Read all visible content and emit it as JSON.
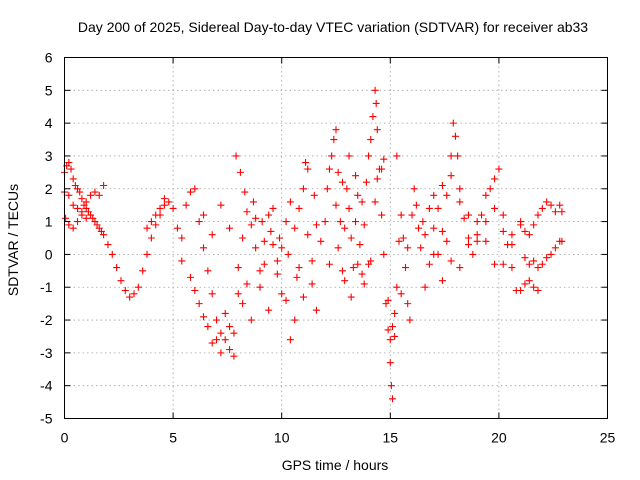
{
  "chart_data": {
    "type": "scatter",
    "title": "Day 200 of 2025, Sidereal Day-to-day VTEC variation (SDTVAR) for receiver ab33",
    "xlabel": "GPS time / hours",
    "ylabel": "SDTVAR / TECUs",
    "xlim": [
      0,
      25
    ],
    "ylim": [
      -5,
      6
    ],
    "xticks": [
      0,
      5,
      10,
      15,
      20,
      25
    ],
    "yticks": [
      -5,
      -4,
      -3,
      -2,
      -1,
      0,
      1,
      2,
      3,
      4,
      5,
      6
    ],
    "grid": true,
    "marker": "+",
    "color": "#ff0000",
    "series": [
      {
        "name": "SDTVAR",
        "points": [
          [
            0.0,
            2.5
          ],
          [
            0.1,
            2.7
          ],
          [
            0.2,
            2.8
          ],
          [
            0.3,
            2.6
          ],
          [
            0.4,
            2.3
          ],
          [
            0.5,
            2.1
          ],
          [
            0.6,
            2.0
          ],
          [
            0.7,
            1.9
          ],
          [
            0.8,
            1.7
          ],
          [
            0.9,
            1.5
          ],
          [
            1.0,
            1.4
          ],
          [
            1.1,
            1.3
          ],
          [
            1.2,
            1.2
          ],
          [
            1.3,
            1.1
          ],
          [
            1.4,
            1.0
          ],
          [
            1.5,
            0.9
          ],
          [
            1.6,
            0.8
          ],
          [
            1.7,
            0.7
          ],
          [
            1.8,
            0.6
          ],
          [
            2.0,
            0.3
          ],
          [
            2.2,
            0.0
          ],
          [
            2.4,
            -0.4
          ],
          [
            2.6,
            -0.8
          ],
          [
            2.8,
            -1.1
          ],
          [
            3.0,
            -1.3
          ],
          [
            3.2,
            -1.2
          ],
          [
            3.4,
            -1.0
          ],
          [
            3.6,
            -0.5
          ],
          [
            3.8,
            0.0
          ],
          [
            4.0,
            0.5
          ],
          [
            4.2,
            0.9
          ],
          [
            4.4,
            1.2
          ],
          [
            4.6,
            1.5
          ],
          [
            4.8,
            1.6
          ],
          [
            5.0,
            1.4
          ],
          [
            0.05,
            1.1
          ],
          [
            0.2,
            0.9
          ],
          [
            0.4,
            0.8
          ],
          [
            0.6,
            1.0
          ],
          [
            0.8,
            1.3
          ],
          [
            1.0,
            1.6
          ],
          [
            1.2,
            1.8
          ],
          [
            1.4,
            1.9
          ],
          [
            1.6,
            1.8
          ],
          [
            1.8,
            2.1
          ],
          [
            0.0,
            1.9
          ],
          [
            0.2,
            1.8
          ],
          [
            0.4,
            1.5
          ],
          [
            0.6,
            1.4
          ],
          [
            0.8,
            1.2
          ],
          [
            1.0,
            1.1
          ],
          [
            3.8,
            0.8
          ],
          [
            4.0,
            1.0
          ],
          [
            4.2,
            1.2
          ],
          [
            4.4,
            1.4
          ],
          [
            4.6,
            1.7
          ],
          [
            5.2,
            0.8
          ],
          [
            5.4,
            0.5
          ],
          [
            5.6,
            1.5
          ],
          [
            5.8,
            1.9
          ],
          [
            6.0,
            2.0
          ],
          [
            6.2,
            1.0
          ],
          [
            6.4,
            0.2
          ],
          [
            6.6,
            -0.5
          ],
          [
            6.8,
            -1.2
          ],
          [
            7.0,
            -2.0
          ],
          [
            7.2,
            -2.4
          ],
          [
            7.4,
            -2.6
          ],
          [
            7.6,
            -2.9
          ],
          [
            7.8,
            -3.1
          ],
          [
            8.0,
            -1.2
          ],
          [
            8.2,
            0.5
          ],
          [
            8.4,
            1.3
          ],
          [
            8.6,
            0.9
          ],
          [
            8.8,
            0.2
          ],
          [
            9.0,
            -0.5
          ],
          [
            9.2,
            0.4
          ],
          [
            9.4,
            1.2
          ],
          [
            9.6,
            0.3
          ],
          [
            9.8,
            -0.6
          ],
          [
            10.0,
            -1.2
          ],
          [
            10.2,
            1.0
          ],
          [
            10.4,
            -2.6
          ],
          [
            10.6,
            0.8
          ],
          [
            10.8,
            1.4
          ],
          [
            11.0,
            2.0
          ],
          [
            11.2,
            0.6
          ],
          [
            11.4,
            -0.9
          ],
          [
            11.6,
            -1.7
          ],
          [
            11.8,
            0.4
          ],
          [
            5.4,
            -0.2
          ],
          [
            5.8,
            -0.7
          ],
          [
            6.2,
            -1.5
          ],
          [
            6.6,
            -2.2
          ],
          [
            7.0,
            -2.6
          ],
          [
            7.4,
            -1.8
          ],
          [
            7.8,
            -2.4
          ],
          [
            8.2,
            -1.5
          ],
          [
            8.6,
            -2.0
          ],
          [
            9.0,
            -1.0
          ],
          [
            9.4,
            -1.7
          ],
          [
            9.8,
            -0.2
          ],
          [
            10.2,
            -1.4
          ],
          [
            10.6,
            -2.0
          ],
          [
            11.0,
            -1.3
          ],
          [
            11.4,
            -0.2
          ],
          [
            6.0,
            -1.1
          ],
          [
            6.4,
            -1.9
          ],
          [
            6.8,
            -2.7
          ],
          [
            7.2,
            -3.0
          ],
          [
            7.6,
            -2.2
          ],
          [
            8.0,
            -0.4
          ],
          [
            8.4,
            -0.9
          ],
          [
            8.8,
            1.1
          ],
          [
            9.2,
            -0.3
          ],
          [
            9.6,
            1.4
          ],
          [
            10.0,
            0.2
          ],
          [
            10.4,
            1.6
          ],
          [
            10.8,
            -0.4
          ],
          [
            11.2,
            2.6
          ],
          [
            11.6,
            0.9
          ],
          [
            6.4,
            1.2
          ],
          [
            6.8,
            0.6
          ],
          [
            7.2,
            1.5
          ],
          [
            7.6,
            0.8
          ],
          [
            7.9,
            3.0
          ],
          [
            8.1,
            2.5
          ],
          [
            8.3,
            1.9
          ],
          [
            8.7,
            1.6
          ],
          [
            9.1,
            1.0
          ],
          [
            9.5,
            0.7
          ],
          [
            9.9,
            0.5
          ],
          [
            10.3,
            0.0
          ],
          [
            10.7,
            -0.7
          ],
          [
            11.1,
            2.8
          ],
          [
            11.5,
            1.8
          ],
          [
            12.0,
            1.0
          ],
          [
            12.1,
            2.0
          ],
          [
            12.2,
            2.6
          ],
          [
            12.3,
            3.0
          ],
          [
            12.4,
            3.5
          ],
          [
            12.5,
            3.8
          ],
          [
            12.6,
            2.5
          ],
          [
            12.7,
            1.0
          ],
          [
            12.8,
            -0.5
          ],
          [
            12.9,
            0.8
          ],
          [
            13.0,
            2.0
          ],
          [
            13.1,
            1.4
          ],
          [
            13.2,
            0.5
          ],
          [
            13.3,
            -0.4
          ],
          [
            13.4,
            1.0
          ],
          [
            13.5,
            1.8
          ],
          [
            13.6,
            0.3
          ],
          [
            13.7,
            -0.6
          ],
          [
            13.8,
            0.9
          ],
          [
            13.9,
            2.2
          ],
          [
            14.0,
            3.0
          ],
          [
            14.1,
            3.5
          ],
          [
            14.2,
            4.2
          ],
          [
            14.3,
            5.0
          ],
          [
            14.35,
            4.6
          ],
          [
            14.4,
            3.8
          ],
          [
            14.5,
            2.6
          ],
          [
            14.6,
            1.2
          ],
          [
            14.7,
            0.0
          ],
          [
            14.8,
            -1.5
          ],
          [
            14.9,
            -2.3
          ],
          [
            15.0,
            -2.6
          ],
          [
            15.1,
            -2.2
          ],
          [
            15.2,
            -1.8
          ],
          [
            15.3,
            -1.0
          ],
          [
            15.4,
            0.4
          ],
          [
            15.5,
            1.2
          ],
          [
            15.6,
            0.5
          ],
          [
            15.7,
            -0.4
          ],
          [
            15.8,
            -1.5
          ],
          [
            15.9,
            -2.0
          ],
          [
            16.0,
            1.2
          ],
          [
            16.1,
            2.0
          ],
          [
            16.2,
            1.5
          ],
          [
            16.3,
            0.8
          ],
          [
            16.4,
            0.2
          ],
          [
            16.5,
            1.0
          ],
          [
            12.2,
            -0.3
          ],
          [
            12.5,
            1.5
          ],
          [
            12.8,
            2.2
          ],
          [
            13.1,
            3.0
          ],
          [
            13.4,
            2.4
          ],
          [
            13.7,
            1.6
          ],
          [
            14.0,
            -0.3
          ],
          [
            14.3,
            1.6
          ],
          [
            14.6,
            2.6
          ],
          [
            14.9,
            -1.4
          ],
          [
            15.2,
            -2.5
          ],
          [
            15.5,
            -1.2
          ],
          [
            15.8,
            0.2
          ],
          [
            12.6,
            0.2
          ],
          [
            12.9,
            -0.8
          ],
          [
            13.2,
            -1.3
          ],
          [
            13.5,
            -0.3
          ],
          [
            13.8,
            -0.9
          ],
          [
            14.1,
            -0.2
          ],
          [
            14.4,
            2.3
          ],
          [
            14.7,
            2.9
          ],
          [
            15.0,
            -3.3
          ],
          [
            15.05,
            -4.0
          ],
          [
            15.1,
            -4.4
          ],
          [
            15.3,
            3.0
          ],
          [
            16.6,
            0.6
          ],
          [
            16.8,
            1.4
          ],
          [
            17.0,
            0.8
          ],
          [
            17.2,
            0.0
          ],
          [
            17.4,
            0.7
          ],
          [
            17.6,
            1.8
          ],
          [
            17.8,
            3.0
          ],
          [
            17.9,
            4.0
          ],
          [
            18.0,
            3.6
          ],
          [
            18.1,
            3.0
          ],
          [
            18.2,
            2.0
          ],
          [
            18.4,
            1.1
          ],
          [
            18.6,
            0.5
          ],
          [
            18.8,
            0.0
          ],
          [
            19.0,
            0.6
          ],
          [
            19.2,
            1.2
          ],
          [
            19.4,
            1.8
          ],
          [
            19.6,
            2.0
          ],
          [
            19.8,
            2.3
          ],
          [
            20.0,
            2.6
          ],
          [
            20.2,
            1.2
          ],
          [
            20.4,
            0.3
          ],
          [
            20.6,
            -0.4
          ],
          [
            20.8,
            -1.1
          ],
          [
            21.0,
            -1.1
          ],
          [
            21.2,
            -0.9
          ],
          [
            21.4,
            -0.8
          ],
          [
            21.6,
            -1.0
          ],
          [
            21.8,
            -1.1
          ],
          [
            16.6,
            -1.0
          ],
          [
            16.8,
            -0.3
          ],
          [
            17.0,
            1.8
          ],
          [
            17.2,
            1.4
          ],
          [
            17.4,
            2.1
          ],
          [
            17.6,
            0.4
          ],
          [
            17.8,
            -0.2
          ],
          [
            18.2,
            -0.4
          ],
          [
            18.6,
            0.3
          ],
          [
            19.0,
            1.0
          ],
          [
            19.4,
            0.4
          ],
          [
            19.8,
            -0.3
          ],
          [
            20.2,
            0.7
          ],
          [
            20.6,
            0.3
          ],
          [
            17.0,
            0.0
          ],
          [
            17.4,
            -0.8
          ],
          [
            17.8,
            2.4
          ],
          [
            18.2,
            1.6
          ],
          [
            18.6,
            1.2
          ],
          [
            19.0,
            0.4
          ],
          [
            19.4,
            1.0
          ],
          [
            19.8,
            1.4
          ],
          [
            20.2,
            -0.3
          ],
          [
            20.6,
            0.6
          ],
          [
            21.0,
            0.9
          ],
          [
            21.0,
            1.0
          ],
          [
            21.2,
            0.7
          ],
          [
            21.4,
            0.6
          ],
          [
            21.6,
            0.9
          ],
          [
            21.8,
            1.2
          ],
          [
            22.0,
            1.4
          ],
          [
            22.2,
            1.6
          ],
          [
            22.4,
            1.5
          ],
          [
            22.6,
            1.3
          ],
          [
            22.8,
            1.5
          ],
          [
            22.9,
            1.3
          ],
          [
            21.2,
            -0.1
          ],
          [
            21.4,
            -0.3
          ],
          [
            21.6,
            -0.2
          ],
          [
            21.8,
            -0.4
          ],
          [
            22.0,
            -0.3
          ],
          [
            22.2,
            -0.1
          ],
          [
            22.4,
            0.0
          ],
          [
            22.6,
            0.2
          ],
          [
            22.8,
            0.4
          ],
          [
            22.9,
            0.4
          ]
        ]
      }
    ]
  }
}
